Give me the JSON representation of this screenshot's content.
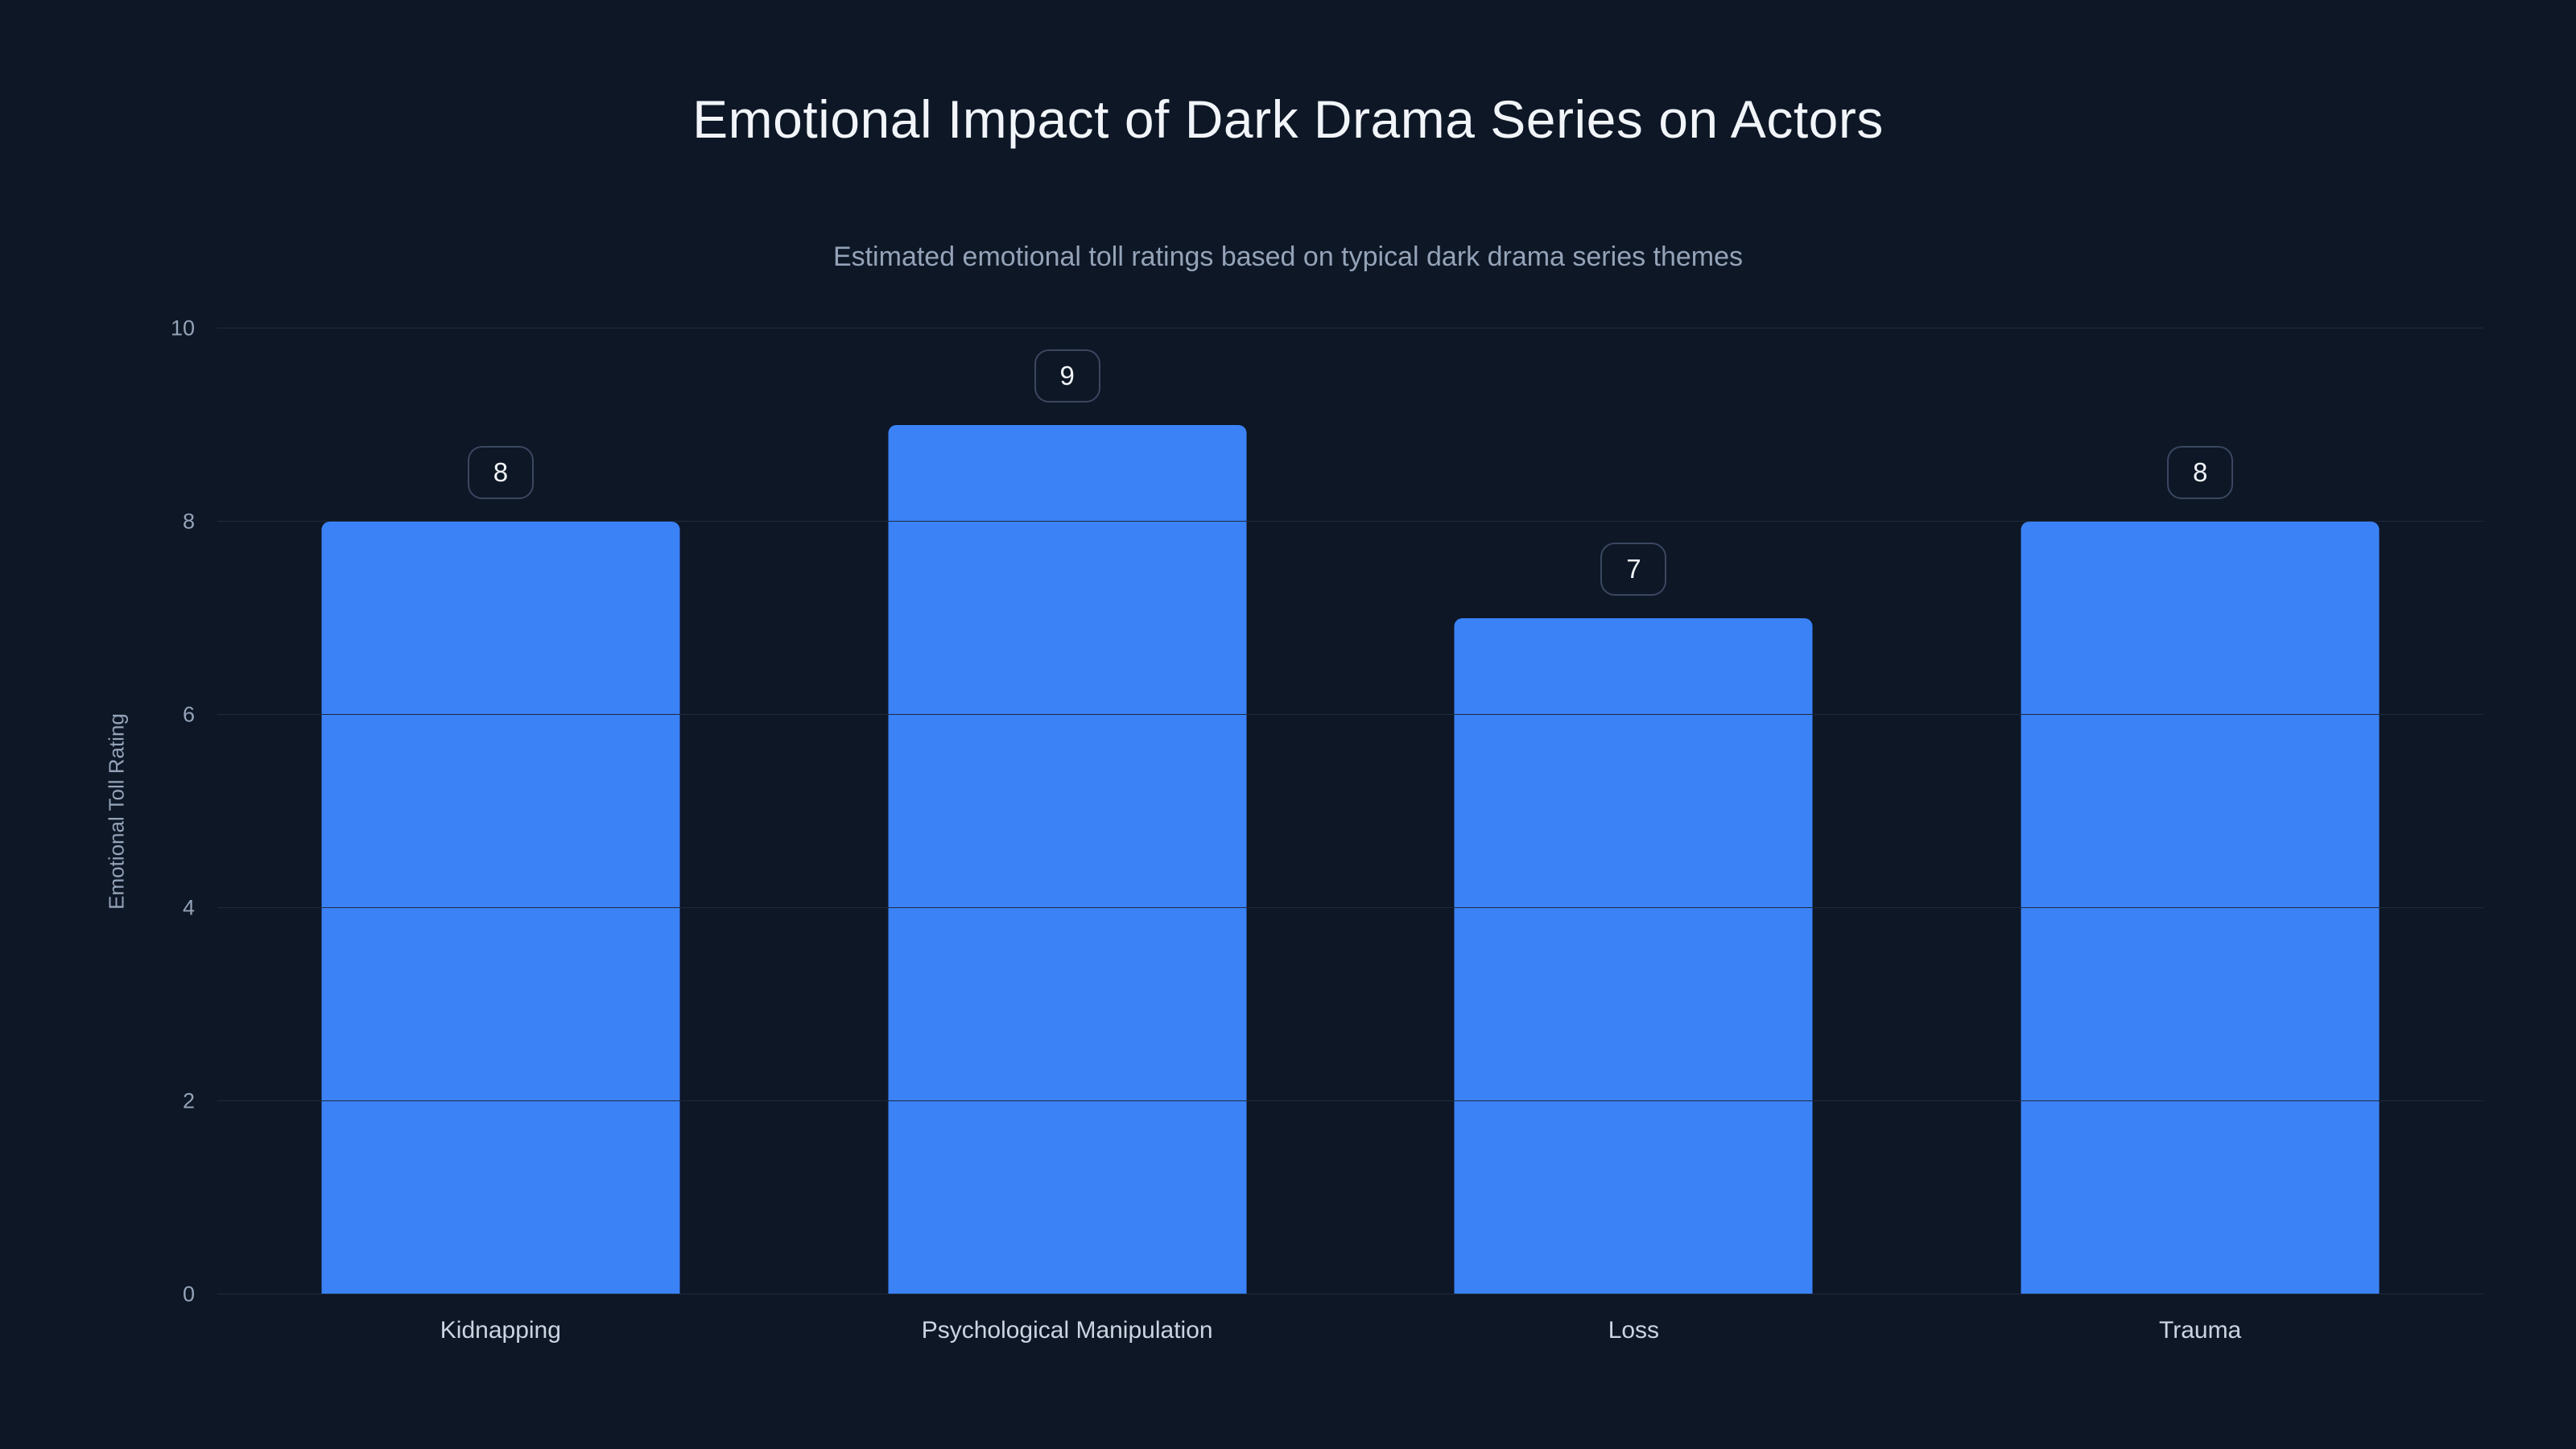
{
  "chart_data": {
    "type": "bar",
    "title": "Emotional Impact of Dark Drama Series on Actors",
    "subtitle": "Estimated emotional toll ratings based on typical dark drama series themes",
    "xlabel": "",
    "ylabel": "Emotional Toll Rating",
    "categories": [
      "Kidnapping",
      "Psychological Manipulation",
      "Loss",
      "Trauma"
    ],
    "values": [
      8,
      9,
      7,
      8
    ],
    "value_labels": [
      "8",
      "9",
      "7",
      "8"
    ],
    "ylim": [
      0,
      10
    ],
    "yticks": [
      0,
      2,
      4,
      6,
      8,
      10
    ],
    "grid": true,
    "legend": "none",
    "colors": {
      "background": "#0e1726",
      "bar": "#3b82f6",
      "gridline": "#1e2a3d",
      "title_text": "#f1f5f9",
      "subtitle_text": "#94a3b8",
      "axis_text": "#94a3b8",
      "category_text": "#cbd5e1",
      "badge_border": "#3a4760"
    }
  }
}
